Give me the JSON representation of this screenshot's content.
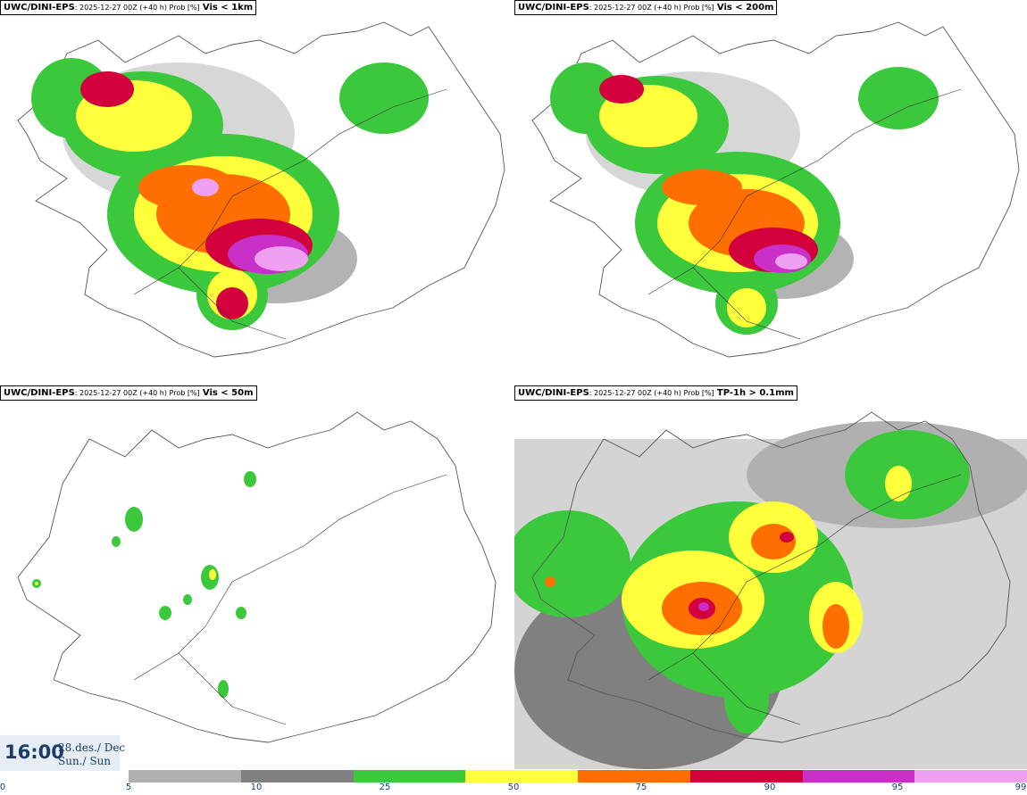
{
  "panels": [
    {
      "source": "UWC/DINI-EPS",
      "meta": ": 2025-12-27 00Z (+40 h) Prob [%]",
      "variable": "Vis < 1km"
    },
    {
      "source": "UWC/DINI-EPS",
      "meta": ": 2025-12-27 00Z (+40 h) Prob [%]",
      "variable": "Vis < 200m"
    },
    {
      "source": "UWC/DINI-EPS",
      "meta": ": 2025-12-27 00Z (+40 h) Prob [%]",
      "variable": "Vis < 50m"
    },
    {
      "source": "UWC/DINI-EPS",
      "meta": ": 2025-12-27 00Z (+40 h) Prob [%]",
      "variable": "TP-1h > 0.1mm"
    }
  ],
  "valid_time": {
    "time": "16:00",
    "date_line1": "28.des./ Dec",
    "date_line2": "Sun./ Sun"
  },
  "colorbar": {
    "labels": [
      "0",
      "5",
      "10",
      "25",
      "50",
      "75",
      "90",
      "95",
      "99"
    ],
    "colors": [
      "#b0b0b0",
      "#808080",
      "#3cc83c",
      "#ffff3c",
      "#ff6e00",
      "#d2003c",
      "#c830c8",
      "#f0a0f0"
    ]
  }
}
